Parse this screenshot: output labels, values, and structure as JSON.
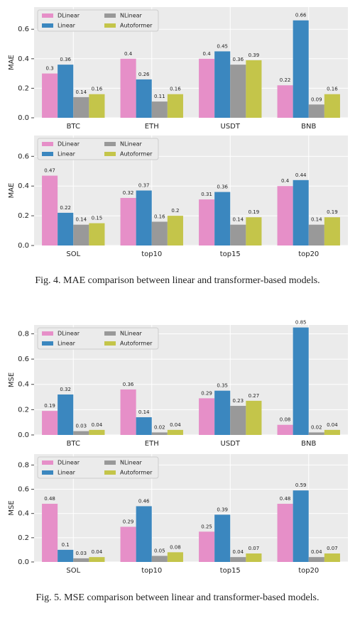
{
  "chart_data": [
    {
      "type": "bar",
      "ylabel": "MAE",
      "categories": [
        "BTC",
        "ETH",
        "USDT",
        "BNB"
      ],
      "series": [
        {
          "name": "DLinear",
          "color": "#e68fc8",
          "values": [
            0.3,
            0.4,
            0.4,
            0.22
          ]
        },
        {
          "name": "Linear",
          "color": "#3b87bf",
          "values": [
            0.36,
            0.26,
            0.45,
            0.66
          ]
        },
        {
          "name": "NLinear",
          "color": "#999999",
          "values": [
            0.14,
            0.11,
            0.36,
            0.09
          ]
        },
        {
          "name": "Autoformer",
          "color": "#c4c54a",
          "values": [
            0.16,
            0.16,
            0.39,
            0.16
          ]
        }
      ],
      "ylim": [
        0,
        0.75
      ],
      "yticks": [
        {
          "value": 0,
          "label": "0.0"
        },
        0.2,
        0.4,
        0.6
      ],
      "grid": true,
      "legend": "upper left"
    },
    {
      "type": "bar",
      "ylabel": "MAE",
      "categories": [
        "SOL",
        "top10",
        "top15",
        "top20"
      ],
      "series": [
        {
          "name": "DLinear",
          "color": "#e68fc8",
          "values": [
            0.47,
            0.32,
            0.31,
            0.4
          ]
        },
        {
          "name": "Linear",
          "color": "#3b87bf",
          "values": [
            0.22,
            0.37,
            0.36,
            0.44
          ]
        },
        {
          "name": "NLinear",
          "color": "#999999",
          "values": [
            0.14,
            0.16,
            0.14,
            0.14
          ]
        },
        {
          "name": "Autoformer",
          "color": "#c4c54a",
          "values": [
            0.15,
            0.2,
            0.19,
            0.19
          ]
        }
      ],
      "ylim": [
        0,
        0.74
      ],
      "yticks": [
        {
          "value": 0,
          "label": "0.0"
        },
        0.2,
        0.4,
        0.6
      ],
      "grid": true,
      "legend": "upper left"
    },
    {
      "type": "bar",
      "ylabel": "MSE",
      "categories": [
        "BTC",
        "ETH",
        "USDT",
        "BNB"
      ],
      "series": [
        {
          "name": "DLinear",
          "color": "#e68fc8",
          "values": [
            0.19,
            0.36,
            0.29,
            0.08
          ]
        },
        {
          "name": "Linear",
          "color": "#3b87bf",
          "values": [
            0.32,
            0.14,
            0.35,
            0.85
          ]
        },
        {
          "name": "NLinear",
          "color": "#999999",
          "values": [
            0.03,
            0.02,
            0.23,
            0.02
          ]
        },
        {
          "name": "Autoformer",
          "color": "#c4c54a",
          "values": [
            0.04,
            0.04,
            0.27,
            0.04
          ]
        }
      ],
      "ylim": [
        0,
        0.87
      ],
      "yticks": [
        {
          "value": 0,
          "label": "0.0"
        },
        0.2,
        0.4,
        0.6,
        0.8
      ],
      "grid": true,
      "legend": "upper left"
    },
    {
      "type": "bar",
      "ylabel": "MSE",
      "categories": [
        "SOL",
        "top10",
        "top15",
        "top20"
      ],
      "series": [
        {
          "name": "DLinear",
          "color": "#e68fc8",
          "values": [
            0.48,
            0.29,
            0.25,
            0.48
          ]
        },
        {
          "name": "Linear",
          "color": "#3b87bf",
          "values": [
            0.1,
            0.46,
            0.39,
            0.59
          ]
        },
        {
          "name": "NLinear",
          "color": "#999999",
          "values": [
            0.03,
            0.05,
            0.04,
            0.04
          ]
        },
        {
          "name": "Autoformer",
          "color": "#c4c54a",
          "values": [
            0.04,
            0.08,
            0.07,
            0.07
          ]
        }
      ],
      "ylim": [
        0,
        0.89
      ],
      "yticks": [
        {
          "value": 0,
          "label": "0.0"
        },
        0.2,
        0.4,
        0.6,
        0.8
      ],
      "grid": true,
      "legend": "upper left"
    }
  ],
  "captions": [
    "Fig. 4.  MAE comparison between linear and transformer-based models.",
    "Fig. 5.  MSE comparison between linear and transformer-based models."
  ]
}
